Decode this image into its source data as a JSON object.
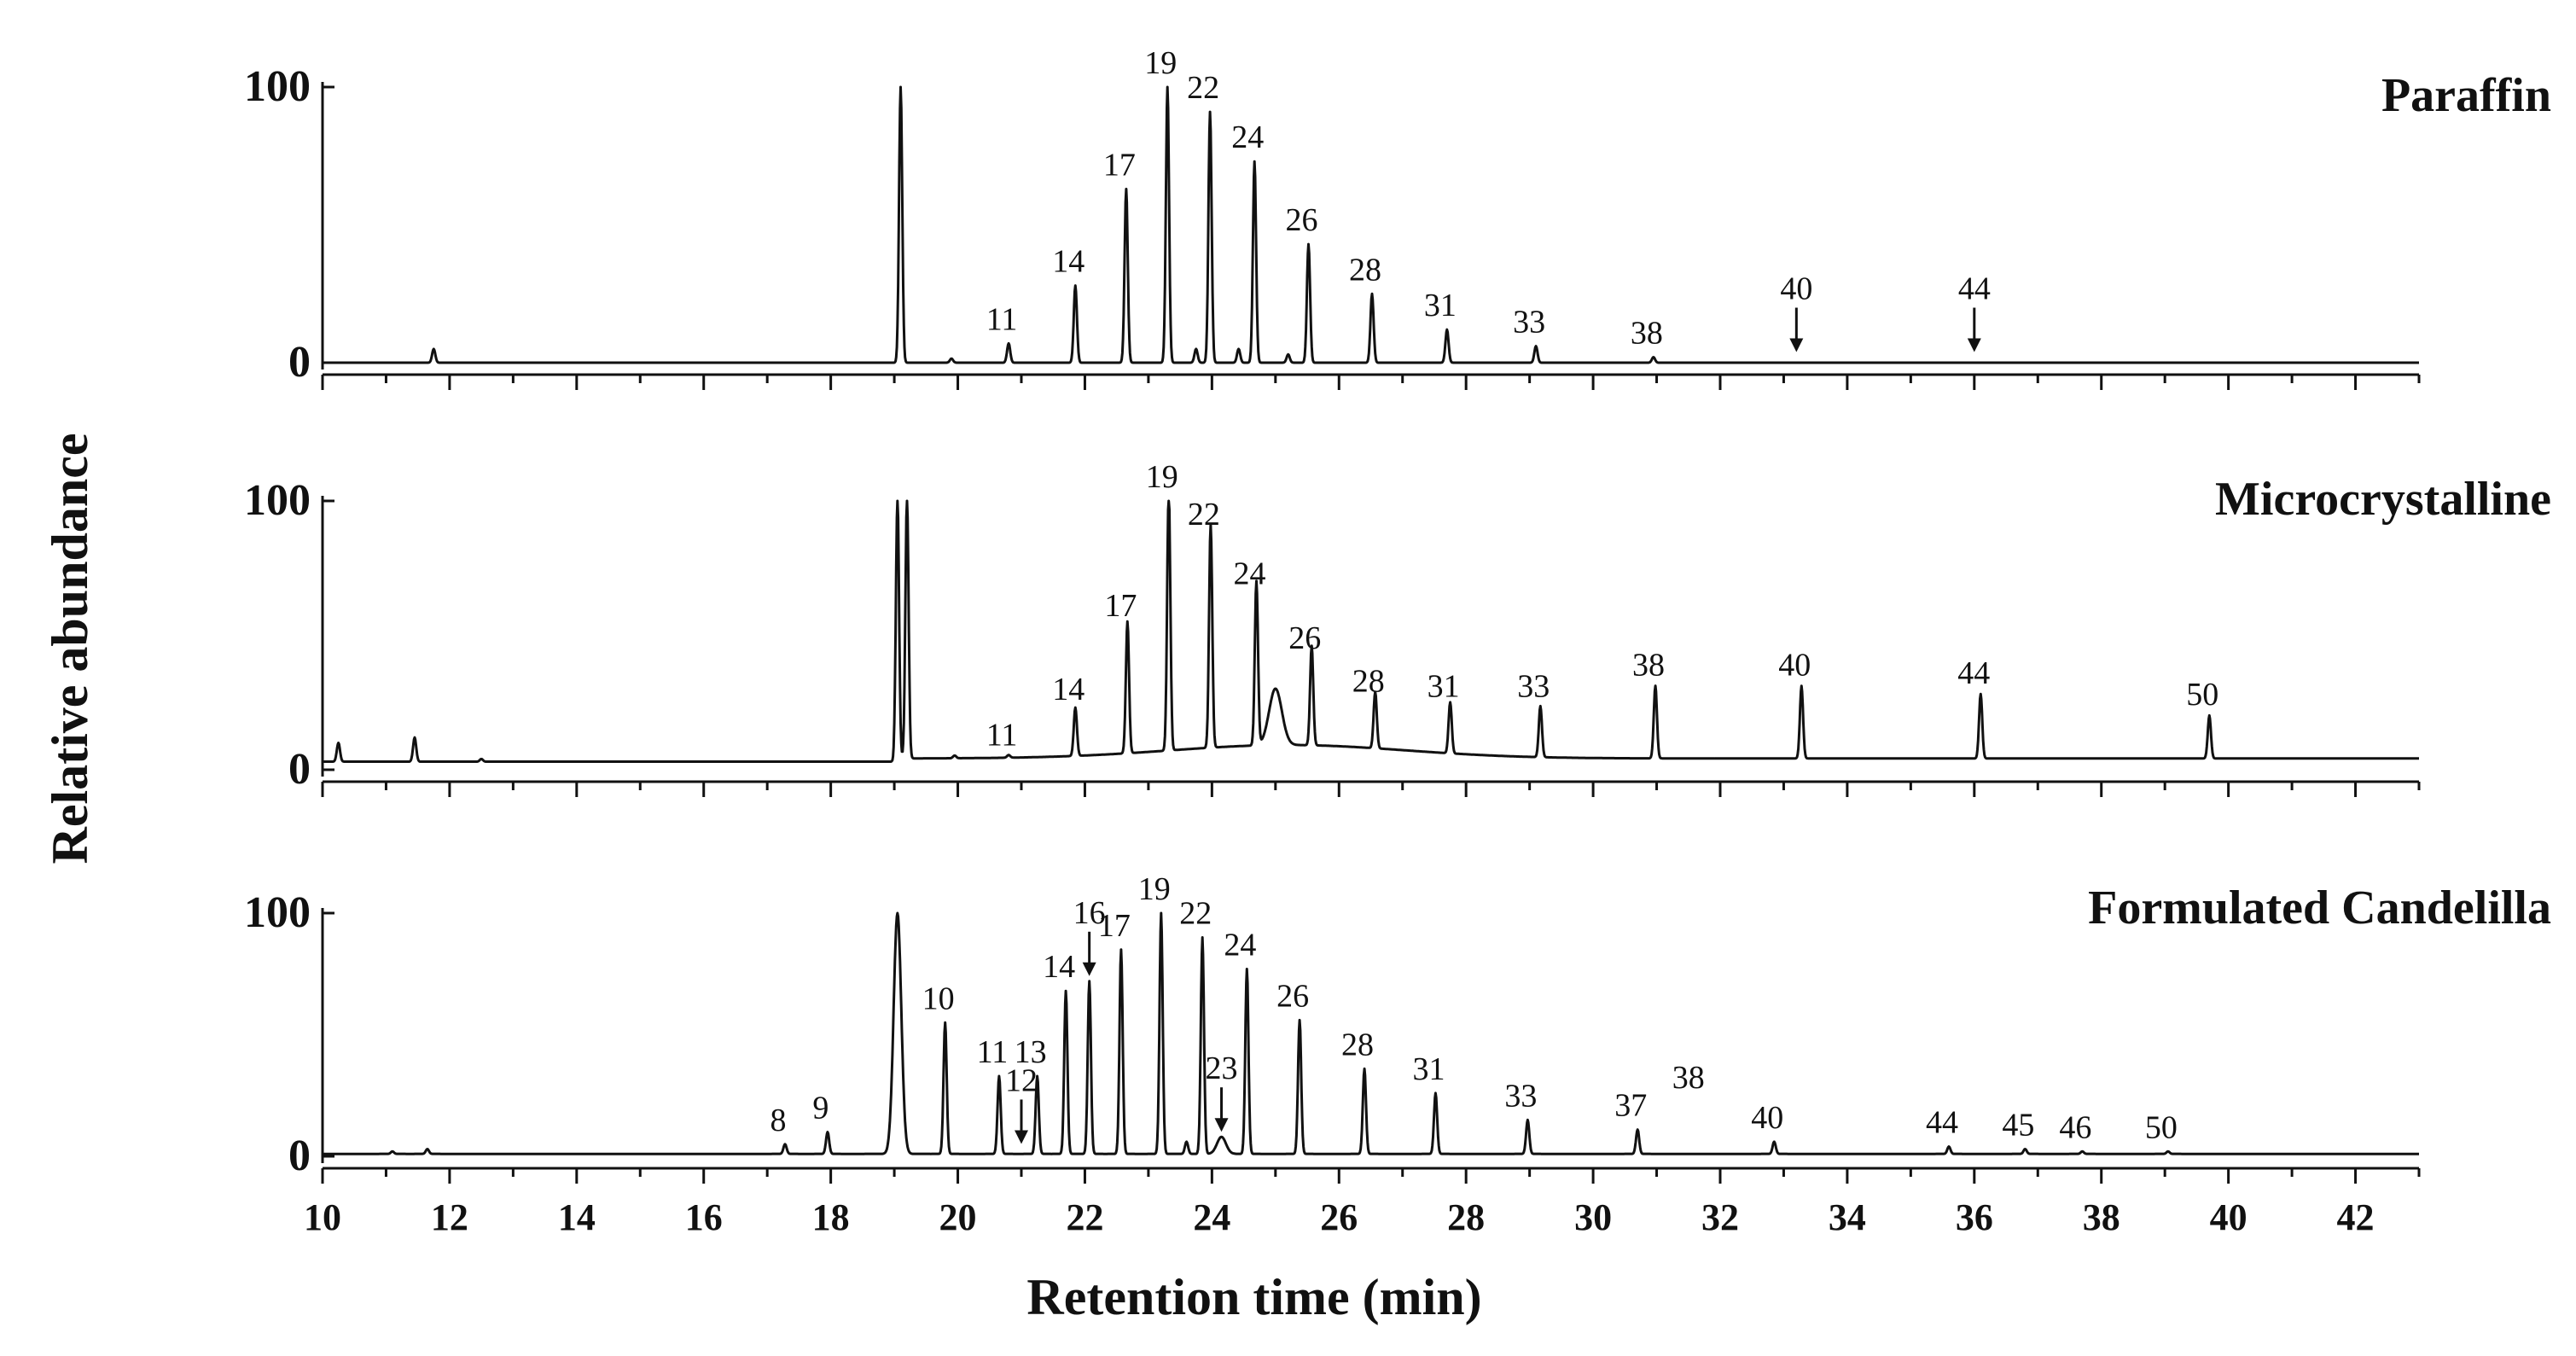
{
  "chart_data": {
    "type": "line",
    "x_axis": {
      "label": "Retention time (min)",
      "range": [
        10,
        43
      ],
      "ticks": [
        "10",
        "12",
        "14",
        "16",
        "18",
        "20",
        "22",
        "24",
        "26",
        "28",
        "30",
        "32",
        "34",
        "36",
        "38",
        "40",
        "42"
      ]
    },
    "y_axis": {
      "label": "Relative abundance",
      "ticks": [
        "0",
        "100"
      ],
      "range": [
        0,
        100
      ]
    },
    "series": [
      {
        "name": "Paraffin",
        "baseline": 0,
        "peaks": [
          {
            "t": 11.75,
            "h": 5
          },
          {
            "t": 19.1,
            "h": 100
          },
          {
            "t": 19.9,
            "h": 1.5
          },
          {
            "t": 20.8,
            "h": 7,
            "label": "11"
          },
          {
            "t": 21.85,
            "h": 28,
            "label": "14"
          },
          {
            "t": 22.65,
            "h": 63,
            "label": "17"
          },
          {
            "t": 23.3,
            "h": 100,
            "label": "19"
          },
          {
            "t": 23.75,
            "h": 5
          },
          {
            "t": 23.97,
            "h": 91,
            "label": "22"
          },
          {
            "t": 24.42,
            "h": 5
          },
          {
            "t": 24.67,
            "h": 73,
            "label": "24"
          },
          {
            "t": 25.2,
            "h": 3
          },
          {
            "t": 25.52,
            "h": 43,
            "label": "26"
          },
          {
            "t": 26.52,
            "h": 25,
            "label": "28"
          },
          {
            "t": 27.7,
            "h": 12,
            "label": "31"
          },
          {
            "t": 29.1,
            "h": 6,
            "label": "33"
          },
          {
            "t": 30.95,
            "h": 2,
            "label": "38"
          }
        ],
        "arrows": [
          {
            "t": 33.2,
            "label": "40"
          },
          {
            "t": 36.0,
            "label": "44"
          }
        ]
      },
      {
        "name": "Microcrystalline",
        "baseline": 3,
        "peaks": [
          {
            "t": 10.25,
            "h": 10
          },
          {
            "t": 11.45,
            "h": 12
          },
          {
            "t": 12.5,
            "h": 4
          },
          {
            "t": 19.05,
            "h": 100
          },
          {
            "t": 19.2,
            "h": 100
          },
          {
            "t": 19.95,
            "h": 4
          },
          {
            "t": 20.8,
            "h": 4,
            "label": "11"
          },
          {
            "t": 21.85,
            "h": 21,
            "label": "14"
          },
          {
            "t": 22.67,
            "h": 52,
            "label": "17"
          },
          {
            "t": 23.32,
            "h": 100,
            "label": "19"
          },
          {
            "t": 23.98,
            "h": 86,
            "label": "22"
          },
          {
            "t": 24.7,
            "h": 64,
            "label": "24"
          },
          {
            "t": 25.0,
            "h": 24,
            "w": 0.1
          },
          {
            "t": 25.57,
            "h": 40,
            "label": "26"
          },
          {
            "t": 26.57,
            "h": 24,
            "label": "28"
          },
          {
            "t": 27.75,
            "h": 22,
            "label": "31"
          },
          {
            "t": 29.17,
            "h": 22,
            "label": "33"
          },
          {
            "t": 30.98,
            "h": 30,
            "label": "38"
          },
          {
            "t": 33.28,
            "h": 30,
            "label": "40"
          },
          {
            "t": 36.1,
            "h": 27,
            "label": "44"
          },
          {
            "t": 39.7,
            "h": 19,
            "label": "50"
          }
        ],
        "arrows": []
      },
      {
        "name": "Formulated Candelilla",
        "baseline": 1,
        "peaks": [
          {
            "t": 11.1,
            "h": 2
          },
          {
            "t": 11.65,
            "h": 3
          },
          {
            "t": 17.28,
            "h": 5,
            "label": "8"
          },
          {
            "t": 17.95,
            "h": 10,
            "label": "9"
          },
          {
            "t": 19.05,
            "h": 100,
            "w": 0.06
          },
          {
            "t": 19.8,
            "h": 55,
            "label": "10"
          },
          {
            "t": 20.65,
            "h": 33,
            "label": "11"
          },
          {
            "t": 21.25,
            "h": 33,
            "label": "13"
          },
          {
            "t": 21.7,
            "h": 68,
            "label": "14"
          },
          {
            "t": 22.07,
            "h": 72
          },
          {
            "t": 22.57,
            "h": 85,
            "label": "17"
          },
          {
            "t": 23.2,
            "h": 100,
            "label": "19"
          },
          {
            "t": 23.6,
            "h": 6
          },
          {
            "t": 23.85,
            "h": 90,
            "label": "22"
          },
          {
            "t": 24.15,
            "h": 8,
            "w": 0.07
          },
          {
            "t": 24.55,
            "h": 77,
            "label": "24"
          },
          {
            "t": 25.38,
            "h": 56,
            "label": "26"
          },
          {
            "t": 26.4,
            "h": 36,
            "label": "28"
          },
          {
            "t": 27.52,
            "h": 26,
            "label": "31"
          },
          {
            "t": 28.97,
            "h": 15,
            "label": "33"
          },
          {
            "t": 30.7,
            "h": 11,
            "label": "37"
          },
          {
            "t": 32.85,
            "h": 6,
            "label": "40"
          },
          {
            "t": 35.6,
            "h": 4,
            "label": "44"
          },
          {
            "t": 36.8,
            "h": 3,
            "label": "45"
          },
          {
            "t": 37.7,
            "h": 2,
            "label": "46"
          },
          {
            "t": 39.05,
            "h": 2,
            "label": "50"
          }
        ],
        "arrows": [
          {
            "t": 21.0,
            "label": "12"
          },
          {
            "t": 22.07,
            "label": "16"
          },
          {
            "t": 24.15,
            "label": "23"
          }
        ],
        "text_labels": [
          {
            "t": 31.5,
            "label": "38"
          }
        ]
      }
    ]
  }
}
